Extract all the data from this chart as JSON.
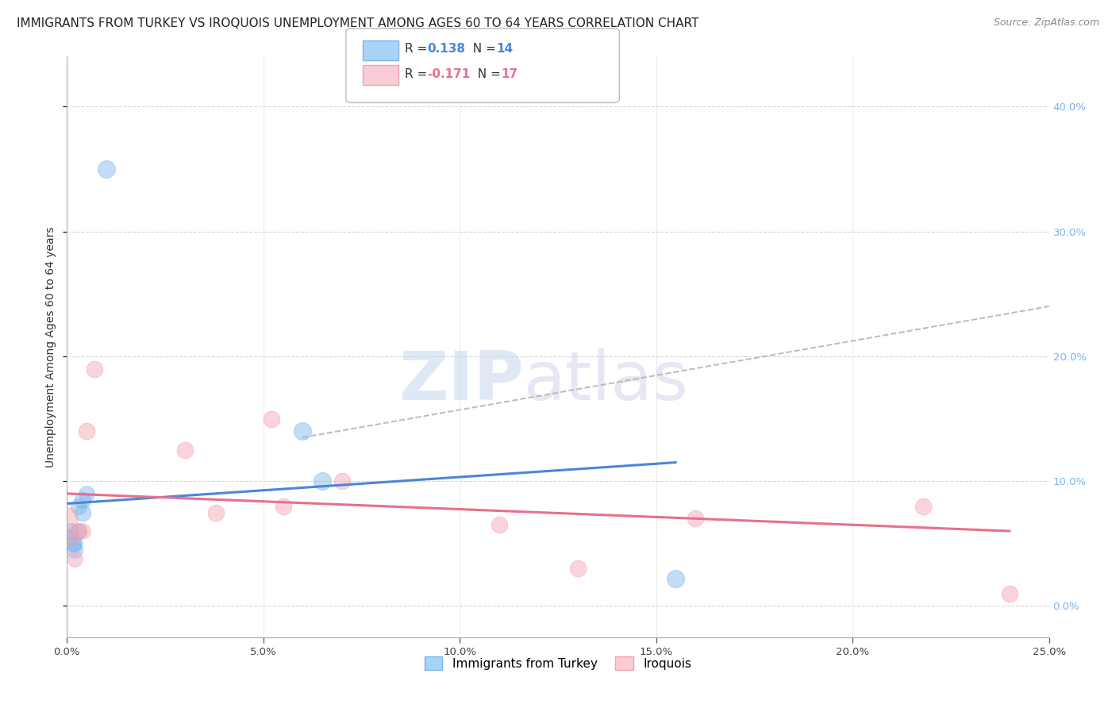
{
  "title": "IMMIGRANTS FROM TURKEY VS IROQUOIS UNEMPLOYMENT AMONG AGES 60 TO 64 YEARS CORRELATION CHART",
  "source": "Source: ZipAtlas.com",
  "ylabel": "Unemployment Among Ages 60 to 64 years",
  "xmin": 0.0,
  "xmax": 0.25,
  "ymin": -0.025,
  "ymax": 0.44,
  "right_yticks": [
    0.0,
    0.1,
    0.2,
    0.3,
    0.4
  ],
  "x_ticks": [
    0.0,
    0.05,
    0.1,
    0.15,
    0.2,
    0.25
  ],
  "grid_color": "#cccccc",
  "blue_color": "#7ab3ef",
  "pink_color": "#f4a0b0",
  "blue_label": "Immigrants from Turkey",
  "pink_label": "Iroquois",
  "blue_R": "0.138",
  "blue_N": "14",
  "pink_R": "-0.171",
  "pink_N": "17",
  "blue_scatter_x": [
    0.01,
    0.004,
    0.004,
    0.003,
    0.002,
    0.001,
    0.001,
    0.0015,
    0.002,
    0.003,
    0.005,
    0.06,
    0.065,
    0.155
  ],
  "blue_scatter_y": [
    0.35,
    0.085,
    0.075,
    0.06,
    0.05,
    0.06,
    0.055,
    0.05,
    0.045,
    0.08,
    0.09,
    0.14,
    0.1,
    0.022
  ],
  "blue_scatter_sizes": [
    250,
    220,
    220,
    200,
    200,
    200,
    200,
    200,
    200,
    200,
    200,
    250,
    250,
    250
  ],
  "pink_scatter_x": [
    0.0,
    0.001,
    0.002,
    0.003,
    0.004,
    0.005,
    0.007,
    0.03,
    0.038,
    0.052,
    0.055,
    0.07,
    0.11,
    0.13,
    0.16,
    0.218,
    0.24
  ],
  "pink_scatter_y": [
    0.07,
    0.055,
    0.038,
    0.06,
    0.06,
    0.14,
    0.19,
    0.125,
    0.075,
    0.15,
    0.08,
    0.1,
    0.065,
    0.03,
    0.07,
    0.08,
    0.01
  ],
  "pink_scatter_sizes": [
    400,
    220,
    200,
    200,
    200,
    220,
    220,
    220,
    220,
    220,
    220,
    220,
    220,
    220,
    220,
    220,
    220
  ],
  "blue_line_x": [
    0.0,
    0.155
  ],
  "blue_line_y": [
    0.082,
    0.115
  ],
  "pink_line_x": [
    0.0,
    0.24
  ],
  "pink_line_y": [
    0.09,
    0.06
  ],
  "dashed_line_x": [
    0.06,
    0.25
  ],
  "dashed_line_y": [
    0.135,
    0.24
  ],
  "watermark_zip": "ZIP",
  "watermark_atlas": "atlas",
  "background_color": "#ffffff",
  "title_fontsize": 11,
  "axis_fontsize": 10
}
